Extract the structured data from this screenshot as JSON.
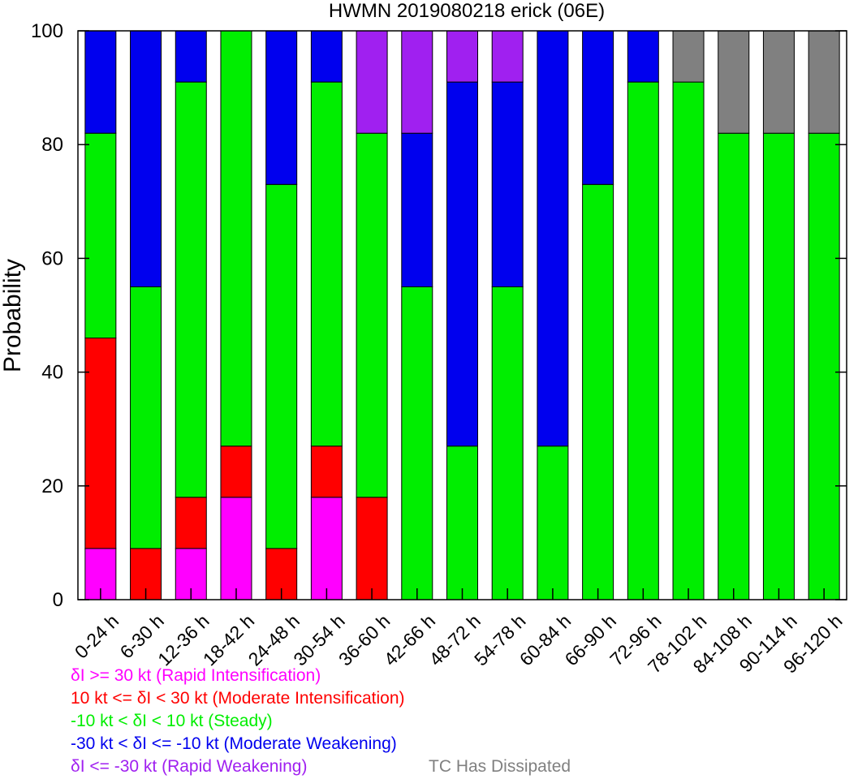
{
  "chart_data": {
    "type": "bar",
    "stacked": true,
    "title": "HWMN 2019080218 erick (06E)",
    "ylabel": "Probability",
    "xlabel": "",
    "ylim": [
      0,
      100
    ],
    "yticks": [
      0,
      20,
      40,
      60,
      80,
      100
    ],
    "grid": false,
    "legend_position": "bottom-left",
    "categories": [
      "0-24 h",
      "6-30 h",
      "12-36 h",
      "18-42 h",
      "24-48 h",
      "30-54 h",
      "36-60 h",
      "42-66 h",
      "48-72 h",
      "54-78 h",
      "60-84 h",
      "66-90 h",
      "72-96 h",
      "78-102 h",
      "84-108 h",
      "90-114 h",
      "96-120 h"
    ],
    "series": [
      {
        "name": "δI >= 30 kt (Rapid Intensification)",
        "color": "#ff00ff",
        "values": [
          9,
          0,
          9,
          18,
          0,
          18,
          0,
          0,
          0,
          0,
          0,
          0,
          0,
          0,
          0,
          0,
          0
        ]
      },
      {
        "name": "10 kt <= δI < 30 kt (Moderate Intensification)",
        "color": "#ff0000",
        "values": [
          37,
          9,
          9,
          9,
          9,
          9,
          18,
          0,
          0,
          0,
          0,
          0,
          0,
          0,
          0,
          0,
          0
        ]
      },
      {
        "name": "-10 kt < δI < 10 kt (Steady)",
        "color": "#00ee00",
        "values": [
          36,
          46,
          73,
          73,
          64,
          64,
          64,
          55,
          27,
          55,
          27,
          73,
          91,
          91,
          82,
          82,
          82
        ]
      },
      {
        "name": "-30 kt < δI <= -10 kt (Moderate Weakening)",
        "color": "#0000ee",
        "values": [
          18,
          45,
          9,
          0,
          27,
          9,
          0,
          27,
          64,
          36,
          73,
          27,
          9,
          0,
          0,
          0,
          0
        ]
      },
      {
        "name": "δI <= -30 kt (Rapid Weakening)",
        "color": "#a020f0",
        "values": [
          0,
          0,
          0,
          0,
          0,
          0,
          18,
          18,
          9,
          9,
          0,
          0,
          0,
          0,
          0,
          0,
          0
        ]
      },
      {
        "name": "TC Has Dissipated",
        "color": "#808080",
        "values": [
          0,
          0,
          0,
          0,
          0,
          0,
          0,
          0,
          0,
          0,
          0,
          0,
          0,
          9,
          18,
          18,
          18
        ]
      }
    ]
  }
}
